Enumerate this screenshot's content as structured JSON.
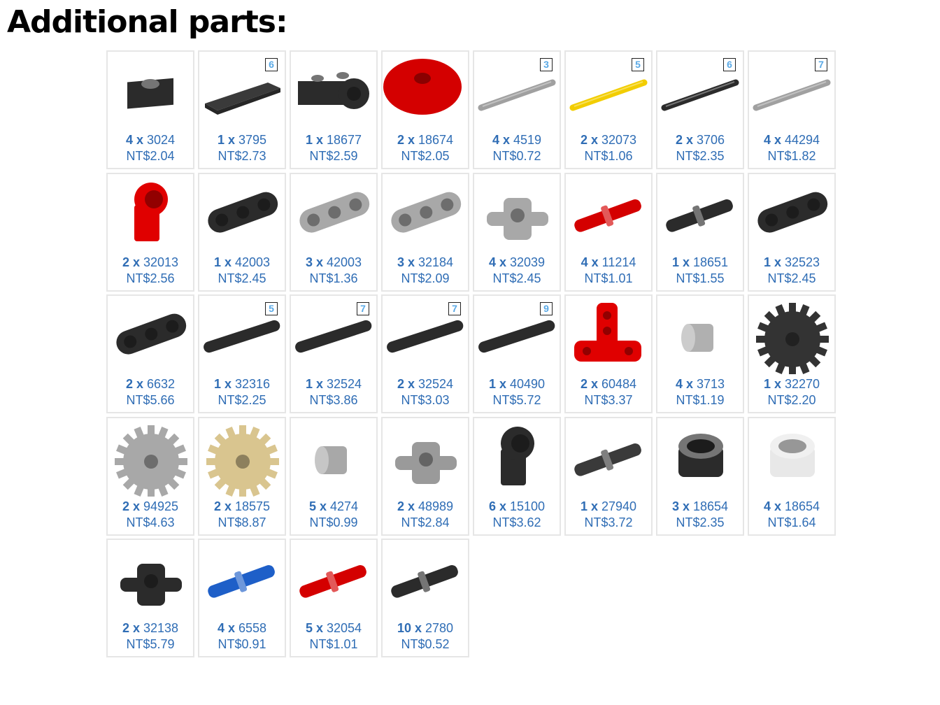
{
  "title": "Additional parts:",
  "x_label": "x",
  "parts": [
    {
      "qty": "4",
      "id": "3024",
      "price": "NT$2.04",
      "shape": "plate1",
      "color": "#2b2b2b"
    },
    {
      "qty": "1",
      "id": "3795",
      "price": "NT$2.73",
      "shape": "plate6",
      "color": "#3a3a3a",
      "badge": "6"
    },
    {
      "qty": "1",
      "id": "18677",
      "price": "NT$2.59",
      "shape": "brick",
      "color": "#2b2b2b"
    },
    {
      "qty": "2",
      "id": "18674",
      "price": "NT$2.05",
      "shape": "round",
      "color": "#d40000"
    },
    {
      "qty": "4",
      "id": "4519",
      "price": "NT$0.72",
      "shape": "axle",
      "color": "#a0a0a0",
      "badge": "3"
    },
    {
      "qty": "2",
      "id": "32073",
      "price": "NT$1.06",
      "shape": "axle",
      "color": "#f2cd00",
      "badge": "5"
    },
    {
      "qty": "2",
      "id": "3706",
      "price": "NT$2.35",
      "shape": "axle",
      "color": "#2b2b2b",
      "badge": "6"
    },
    {
      "qty": "4",
      "id": "44294",
      "price": "NT$1.82",
      "shape": "axle",
      "color": "#a0a0a0",
      "badge": "7"
    },
    {
      "qty": "2",
      "id": "32013",
      "price": "NT$2.56",
      "shape": "connector",
      "color": "#e00000"
    },
    {
      "qty": "1",
      "id": "42003",
      "price": "NT$2.45",
      "shape": "beam3",
      "color": "#2b2b2b"
    },
    {
      "qty": "3",
      "id": "42003",
      "price": "NT$1.36",
      "shape": "beam3",
      "color": "#a8a8a8"
    },
    {
      "qty": "3",
      "id": "32184",
      "price": "NT$2.09",
      "shape": "beam3",
      "color": "#a8a8a8"
    },
    {
      "qty": "4",
      "id": "32039",
      "price": "NT$2.45",
      "shape": "connector2",
      "color": "#a8a8a8"
    },
    {
      "qty": "4",
      "id": "11214",
      "price": "NT$1.01",
      "shape": "pin",
      "color": "#d40000"
    },
    {
      "qty": "1",
      "id": "18651",
      "price": "NT$1.55",
      "shape": "pin",
      "color": "#2b2b2b"
    },
    {
      "qty": "1",
      "id": "32523",
      "price": "NT$2.45",
      "shape": "beam3",
      "color": "#2b2b2b"
    },
    {
      "qty": "2",
      "id": "6632",
      "price": "NT$5.66",
      "shape": "beam3",
      "color": "#2b2b2b"
    },
    {
      "qty": "1",
      "id": "32316",
      "price": "NT$2.25",
      "shape": "beamlong",
      "color": "#2b2b2b",
      "badge": "5"
    },
    {
      "qty": "1",
      "id": "32524",
      "price": "NT$3.86",
      "shape": "beamlong",
      "color": "#2b2b2b",
      "badge": "7"
    },
    {
      "qty": "2",
      "id": "32524",
      "price": "NT$3.03",
      "shape": "beamlong",
      "color": "#2b2b2b",
      "badge": "7"
    },
    {
      "qty": "1",
      "id": "40490",
      "price": "NT$5.72",
      "shape": "beamlong",
      "color": "#2b2b2b",
      "badge": "9"
    },
    {
      "qty": "2",
      "id": "60484",
      "price": "NT$3.37",
      "shape": "tbeam",
      "color": "#e00000"
    },
    {
      "qty": "4",
      "id": "3713",
      "price": "NT$1.19",
      "shape": "bush",
      "color": "#b0b0b0"
    },
    {
      "qty": "1",
      "id": "32270",
      "price": "NT$2.20",
      "shape": "gear",
      "color": "#333333"
    },
    {
      "qty": "2",
      "id": "94925",
      "price": "NT$4.63",
      "shape": "gear",
      "color": "#a8a8a8"
    },
    {
      "qty": "2",
      "id": "18575",
      "price": "NT$8.87",
      "shape": "gear",
      "color": "#d9c58f"
    },
    {
      "qty": "5",
      "id": "4274",
      "price": "NT$0.99",
      "shape": "bush",
      "color": "#a8a8a8"
    },
    {
      "qty": "2",
      "id": "48989",
      "price": "NT$2.84",
      "shape": "connector2",
      "color": "#9a9a9a"
    },
    {
      "qty": "6",
      "id": "15100",
      "price": "NT$3.62",
      "shape": "connector",
      "color": "#2b2b2b"
    },
    {
      "qty": "1",
      "id": "27940",
      "price": "NT$3.72",
      "shape": "pin",
      "color": "#3a3a3a"
    },
    {
      "qty": "3",
      "id": "18654",
      "price": "NT$2.35",
      "shape": "tube",
      "color": "#2b2b2b"
    },
    {
      "qty": "4",
      "id": "18654",
      "price": "NT$1.64",
      "shape": "tube",
      "color": "#e8e8e8"
    },
    {
      "qty": "2",
      "id": "32138",
      "price": "NT$5.79",
      "shape": "connector2",
      "color": "#2b2b2b"
    },
    {
      "qty": "4",
      "id": "6558",
      "price": "NT$0.91",
      "shape": "pin",
      "color": "#1e5fc8"
    },
    {
      "qty": "5",
      "id": "32054",
      "price": "NT$1.01",
      "shape": "pin",
      "color": "#d40000"
    },
    {
      "qty": "10",
      "id": "2780",
      "price": "NT$0.52",
      "shape": "pin",
      "color": "#2b2b2b"
    }
  ]
}
